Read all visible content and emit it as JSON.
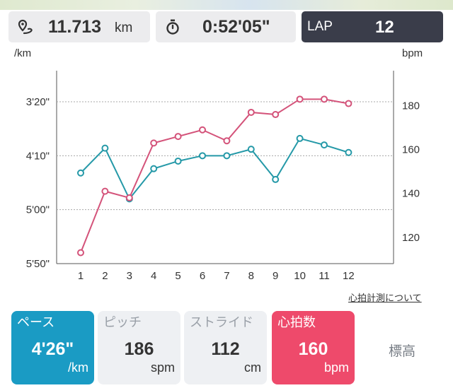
{
  "header": {
    "distance": {
      "value": "11.713",
      "unit": "km",
      "icon": "map-pin-route-icon"
    },
    "time": {
      "value": "0:52'05\"",
      "icon": "stopwatch-icon"
    },
    "lap": {
      "label": "LAP",
      "value": "12"
    }
  },
  "chart_data": {
    "type": "line",
    "left_axis_label": "/km",
    "right_axis_label": "bpm",
    "categories": [
      "1",
      "2",
      "3",
      "4",
      "5",
      "6",
      "7",
      "8",
      "9",
      "10",
      "11",
      "12"
    ],
    "left_ticks": [
      "3'20\"",
      "4'10\"",
      "5'00\"",
      "5'50\""
    ],
    "right_ticks": [
      "180",
      "160",
      "140",
      "120"
    ],
    "left_axis_seconds_per_km": [
      200,
      250,
      300,
      350
    ],
    "right_axis_range_bpm": [
      108,
      196
    ],
    "grid": "dotted horizontal",
    "series": [
      {
        "axis": "left",
        "color": "#2599a8",
        "values_sec_per_km": [
          266,
          243,
          290,
          262,
          255,
          250,
          250,
          244,
          272,
          234,
          240,
          247
        ]
      },
      {
        "axis": "right",
        "color": "#d4537a",
        "values": [
          113,
          141,
          138,
          163,
          166,
          169,
          164,
          177,
          176,
          183,
          183,
          181
        ]
      }
    ]
  },
  "link": {
    "about_hr": "心拍計測について"
  },
  "metrics": [
    {
      "title": "ペース",
      "value": "4'26\"",
      "unit": "/km"
    },
    {
      "title": "ピッチ",
      "value": "186",
      "unit": "spm"
    },
    {
      "title": "ストライド",
      "value": "112",
      "unit": "cm"
    },
    {
      "title": "心拍数",
      "value": "160",
      "unit": "bpm"
    },
    {
      "title": "標高"
    }
  ],
  "colors": {
    "pace_accent": "#1a9bc4",
    "hr_accent": "#ee4a6b",
    "lap_bg": "#3a3d4a",
    "card_bg": "#ececee"
  }
}
